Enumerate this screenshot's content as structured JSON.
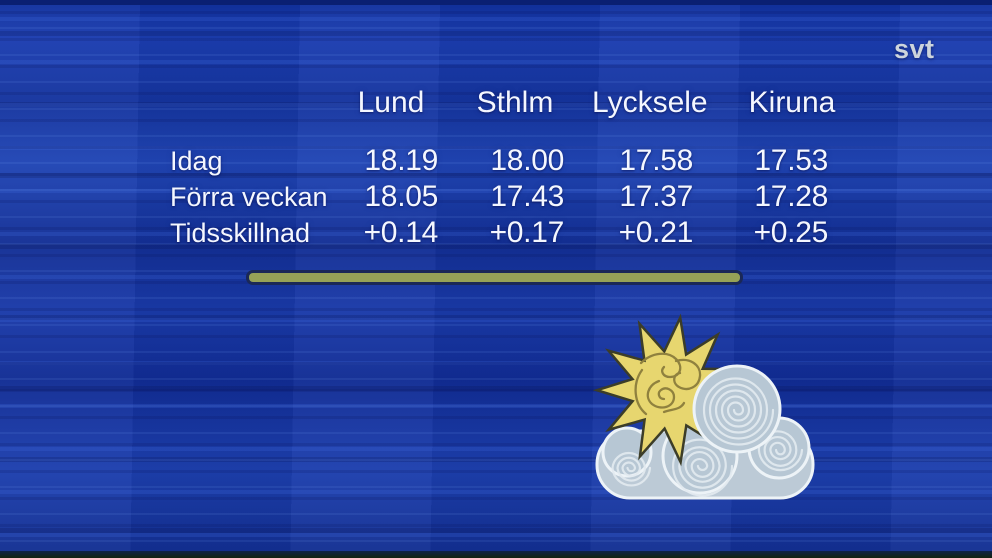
{
  "brand": {
    "logo_text": "svt"
  },
  "chart_data": {
    "type": "table",
    "title": "",
    "columns": [
      "Lund",
      "Sthlm",
      "Lycksele",
      "Kiruna"
    ],
    "rows": [
      {
        "label": "Idag",
        "values": [
          "18.19",
          "18.00",
          "17.58",
          "17.53"
        ]
      },
      {
        "label": "Förra veckan",
        "values": [
          "18.05",
          "17.43",
          "17.37",
          "17.28"
        ]
      },
      {
        "label": "Tidsskillnad",
        "values": [
          "+0.14",
          "+0.17",
          "+0.21",
          "+0.25"
        ]
      }
    ],
    "legend_position": "none",
    "grid": false
  },
  "illustration": {
    "name": "sun-behind-cloud"
  },
  "colors": {
    "background_blue": "#1a3aa8",
    "text_white": "#f4f7ff",
    "divider_olive": "#96a257",
    "sun_yellow": "#e7d66f",
    "sun_outline": "#3c3d28",
    "cloud_gray": "#b7c7d4",
    "cloud_base_gray": "#bccad6",
    "logo_gray": "#cdd5dc"
  }
}
